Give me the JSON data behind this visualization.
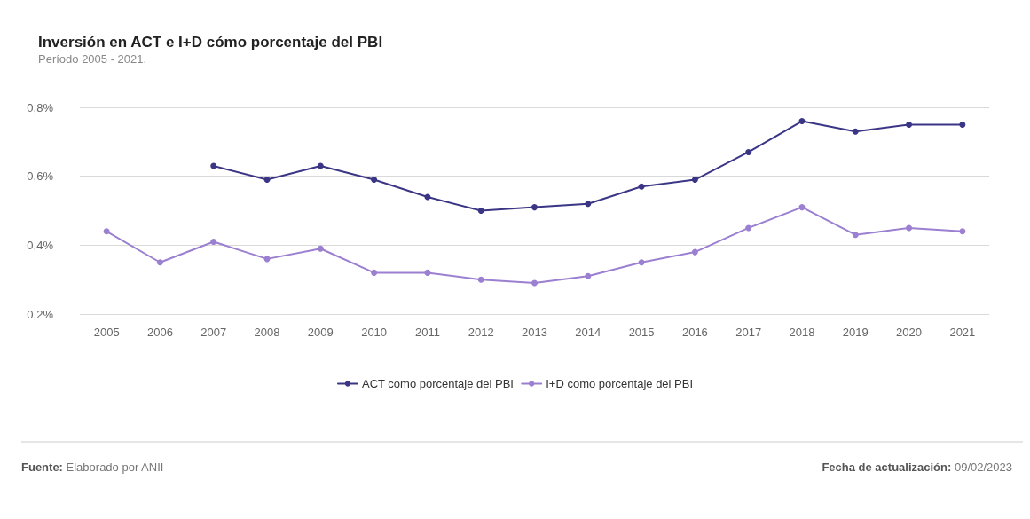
{
  "chart_data": {
    "type": "line",
    "title": "Inversión en ACT e I+D cómo porcentaje del PBI",
    "subtitle": "Período 2005 - 2021.",
    "categories": [
      "2005",
      "2006",
      "2007",
      "2008",
      "2009",
      "2010",
      "2011",
      "2012",
      "2013",
      "2014",
      "2015",
      "2016",
      "2017",
      "2018",
      "2019",
      "2020",
      "2021"
    ],
    "series": [
      {
        "name": "ACT como porcentaje del PBI",
        "color": "#3b3585",
        "values": [
          null,
          null,
          0.63,
          0.59,
          0.63,
          0.59,
          0.54,
          0.5,
          0.51,
          0.52,
          0.57,
          0.59,
          0.67,
          0.76,
          0.73,
          0.75,
          0.75
        ]
      },
      {
        "name": "I+D como porcentaje del PBI",
        "color": "#9b7fd0",
        "values": [
          0.44,
          0.35,
          0.41,
          0.36,
          0.39,
          0.32,
          0.32,
          0.3,
          0.29,
          0.31,
          0.35,
          0.38,
          0.45,
          0.51,
          0.43,
          0.45,
          0.44
        ]
      }
    ],
    "ylim": [
      0.2,
      0.8
    ],
    "yticks": [
      {
        "value": 0.2,
        "label": "0,2%"
      },
      {
        "value": 0.4,
        "label": "0,4%"
      },
      {
        "value": 0.6,
        "label": "0,6%"
      },
      {
        "value": 0.8,
        "label": "0,8%"
      }
    ],
    "grid": "y",
    "legend": "bottom",
    "marker": "circle",
    "line_style": "solid",
    "annotations": [
      "Fuente: Elaborado por ANII",
      "Fecha de actualización: 09/02/2023"
    ]
  }
}
